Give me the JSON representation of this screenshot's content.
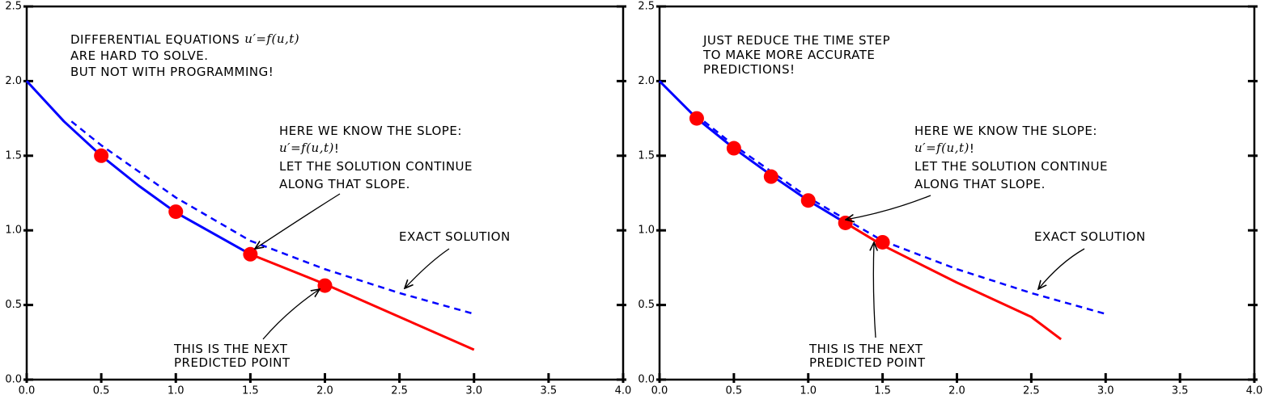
{
  "chart_data": [
    {
      "type": "line",
      "xlim": [
        0,
        4
      ],
      "ylim": [
        0,
        2.5
      ],
      "xticks": [
        {
          "value": 0,
          "label": "0.0"
        },
        0.5,
        {
          "value": 1,
          "label": "1.0"
        },
        1.5,
        {
          "value": 2,
          "label": "2.0"
        },
        2.5,
        {
          "value": 3,
          "label": "3.0"
        },
        3.5,
        {
          "value": 4,
          "label": "4.0"
        }
      ],
      "yticks": [
        {
          "value": 0,
          "label": "0.0"
        },
        0.5,
        {
          "value": 1,
          "label": "1.0"
        },
        1.5,
        {
          "value": 2,
          "label": "2.0"
        },
        2.5
      ],
      "grid": false,
      "series": [
        {
          "color": "#0000ff",
          "style": "solid",
          "x": [
            0,
            0.25,
            0.5,
            0.75,
            1.0,
            1.25,
            1.5
          ],
          "values": [
            2.0,
            1.73,
            1.5,
            1.3,
            1.12,
            0.98,
            0.84
          ]
        },
        {
          "color": "#ff0000",
          "style": "solid",
          "x": [
            1.5,
            2.0,
            2.5,
            3.0
          ],
          "values": [
            0.84,
            0.64,
            0.42,
            0.2
          ]
        },
        {
          "color": "#0000ff",
          "style": "dashed",
          "x": [
            0.3,
            0.5,
            1.0,
            1.5,
            2.0,
            2.5,
            3.0
          ],
          "values": [
            1.73,
            1.57,
            1.22,
            0.93,
            0.74,
            0.58,
            0.44
          ]
        },
        {
          "color": "#ff0000",
          "style": "dots",
          "x": [
            0.5,
            1.0,
            1.5,
            2.0
          ],
          "values": [
            1.5,
            1.125,
            0.84,
            0.63
          ]
        }
      ],
      "annotations": [
        {
          "lines": [
            [
              {
                "text": "DIFFERENTIAL EQUATIONS"
              },
              {
                "math": "u′=f(u,t)"
              }
            ],
            [
              {
                "text": "ARE HARD TO SOLVE."
              }
            ],
            [
              {
                "text": "BUT NOT WITH PROGRAMMING!"
              }
            ]
          ]
        },
        {
          "lines": [
            [
              {
                "text": "HERE WE KNOW THE SLOPE:"
              }
            ],
            [
              {
                "math": "u′=f(u,t)"
              },
              {
                "text": "!"
              }
            ],
            [
              {
                "text": "LET THE SOLUTION CONTINUE"
              }
            ],
            [
              {
                "text": "ALONG THAT SLOPE."
              }
            ]
          ]
        },
        {
          "lines": [
            [
              {
                "text": "EXACT SOLUTION"
              }
            ]
          ]
        },
        {
          "lines": [
            [
              {
                "text": "THIS IS THE NEXT"
              }
            ],
            [
              {
                "text": "PREDICTED POINT"
              }
            ]
          ]
        }
      ]
    },
    {
      "type": "line",
      "xlim": [
        0,
        4
      ],
      "ylim": [
        0,
        2.5
      ],
      "xticks": [
        {
          "value": 0,
          "label": "0.0"
        },
        0.5,
        {
          "value": 1,
          "label": "1.0"
        },
        1.5,
        {
          "value": 2,
          "label": "2.0"
        },
        2.5,
        {
          "value": 3,
          "label": "3.0"
        },
        3.5,
        {
          "value": 4,
          "label": "4.0"
        }
      ],
      "yticks": [
        {
          "value": 0,
          "label": "0.0"
        },
        0.5,
        {
          "value": 1,
          "label": "1.0"
        },
        1.5,
        {
          "value": 2,
          "label": "2.0"
        },
        2.5
      ],
      "grid": false,
      "series": [
        {
          "color": "#0000ff",
          "style": "solid",
          "x": [
            0,
            0.25,
            0.5,
            0.75,
            1.0,
            1.25
          ],
          "values": [
            2.0,
            1.75,
            1.55,
            1.37,
            1.2,
            1.05
          ]
        },
        {
          "color": "#ff0000",
          "style": "solid",
          "x": [
            1.25,
            1.5,
            2.0,
            2.5,
            2.7
          ],
          "values": [
            1.05,
            0.9,
            0.65,
            0.42,
            0.27
          ]
        },
        {
          "color": "#0000ff",
          "style": "dashed",
          "x": [
            0.3,
            0.5,
            1.0,
            1.5,
            2.0,
            2.5,
            3.0
          ],
          "values": [
            1.73,
            1.57,
            1.22,
            0.93,
            0.74,
            0.58,
            0.44
          ]
        },
        {
          "color": "#ff0000",
          "style": "dots",
          "x": [
            0.25,
            0.5,
            0.75,
            1.0,
            1.25,
            1.5
          ],
          "values": [
            1.75,
            1.55,
            1.36,
            1.2,
            1.05,
            0.92
          ]
        }
      ],
      "annotations": [
        {
          "lines": [
            [
              {
                "text": "JUST REDUCE THE TIME STEP"
              }
            ],
            [
              {
                "text": "TO MAKE MORE ACCURATE"
              }
            ],
            [
              {
                "text": "PREDICTIONS!"
              }
            ]
          ]
        },
        {
          "lines": [
            [
              {
                "text": "HERE WE KNOW THE SLOPE:"
              }
            ],
            [
              {
                "math": "u′=f(u,t)"
              },
              {
                "text": "!"
              }
            ],
            [
              {
                "text": "LET THE SOLUTION CONTINUE"
              }
            ],
            [
              {
                "text": "ALONG THAT SLOPE."
              }
            ]
          ]
        },
        {
          "lines": [
            [
              {
                "text": "EXACT SOLUTION"
              }
            ]
          ]
        },
        {
          "lines": [
            [
              {
                "text": "THIS IS THE NEXT"
              }
            ],
            [
              {
                "text": "PREDICTED POINT"
              }
            ]
          ]
        }
      ]
    }
  ]
}
